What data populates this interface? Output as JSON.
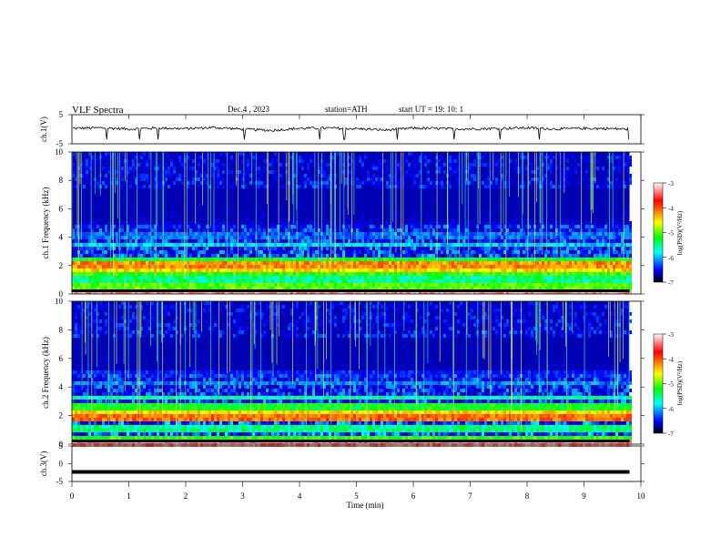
{
  "header": {
    "title": "VLF  Spectra",
    "date": "Dec.4 , 2023",
    "station": "station=ATH",
    "start": "start  UT  =    19: 10: 1"
  },
  "colorbar": {
    "label": "log(PSD)(V²/Hz)",
    "ticks": [
      "-3",
      "-4",
      "-5",
      "-6",
      "-7"
    ],
    "colors": [
      "#ffffff",
      "#ff0000",
      "#ffff00",
      "#00ff00",
      "#00ffff",
      "#0000ff",
      "#000000"
    ]
  },
  "chart_data": [
    {
      "type": "line",
      "panel": "ch1-waveform",
      "ylabel": "ch.1(V)",
      "ylim": [
        -5,
        5
      ],
      "yticks": [
        "5",
        "-5"
      ],
      "x": [
        0,
        0.5,
        1,
        1.5,
        2,
        2.5,
        3,
        3.5,
        4,
        4.5,
        5,
        5.5,
        6,
        6.5,
        7,
        7.5,
        8,
        8.5,
        9,
        9.5,
        9.8
      ],
      "values": [
        0.3,
        0.5,
        0.1,
        0.4,
        0.2,
        0.6,
        0.0,
        -0.4,
        0.3,
        0.4,
        0.2,
        -0.3,
        0.4,
        0.2,
        0.1,
        0.3,
        0.5,
        0.1,
        0.3,
        0.2,
        0.0
      ]
    },
    {
      "type": "heatmap",
      "panel": "ch1-spectrogram",
      "ylabel": "ch.1  Frequency  (kHz)",
      "ylim": [
        0,
        10
      ],
      "yticks": [
        "0",
        "2",
        "4",
        "6",
        "8",
        "10"
      ],
      "xlim": [
        0,
        10
      ],
      "data_end_min": 9.8,
      "bands_khz": [
        {
          "f": 0.2,
          "level": -3.3
        },
        {
          "f": 0.6,
          "level": -4.8
        },
        {
          "f": 1.2,
          "level": -5.2
        },
        {
          "f": 1.7,
          "level": -4.9
        },
        {
          "f": 2.0,
          "level": -4.3
        },
        {
          "f": 2.1,
          "level": -4.1
        },
        {
          "f": 2.5,
          "level": -5.0
        },
        {
          "f": 3.6,
          "level": -5.5
        },
        {
          "f": 4.2,
          "level": -5.8
        },
        {
          "f": 5.0,
          "level": -6.2
        }
      ]
    },
    {
      "type": "heatmap",
      "panel": "ch2-spectrogram",
      "ylabel": "ch.2  Frequency  (kHz)",
      "ylim": [
        0,
        10
      ],
      "yticks": [
        "0",
        "2",
        "4",
        "6",
        "8",
        "10"
      ],
      "xlim": [
        0,
        10
      ],
      "data_end_min": 9.8,
      "bands_khz": [
        {
          "f": 0.2,
          "level": -3.3
        },
        {
          "f": 0.6,
          "level": -4.9
        },
        {
          "f": 1.2,
          "level": -5.2
        },
        {
          "f": 2.0,
          "level": -4.0
        },
        {
          "f": 2.2,
          "level": -4.3
        },
        {
          "f": 2.8,
          "level": -5.0
        },
        {
          "f": 3.4,
          "level": -5.3
        },
        {
          "f": 4.4,
          "level": -5.7
        },
        {
          "f": 5.0,
          "level": -6.0
        }
      ]
    },
    {
      "type": "line",
      "panel": "ch3-waveform",
      "ylabel": "ch.3(V)",
      "ylim": [
        -5,
        5
      ],
      "yticks": [
        "5",
        "0",
        "-5"
      ],
      "x": [
        0,
        9.8
      ],
      "values": [
        -2.3,
        -2.3
      ],
      "xlabel": "Time  (min)",
      "xlim": [
        0,
        10
      ],
      "xticks": [
        "0",
        "1",
        "2",
        "3",
        "4",
        "5",
        "6",
        "7",
        "8",
        "9",
        "10"
      ]
    }
  ]
}
